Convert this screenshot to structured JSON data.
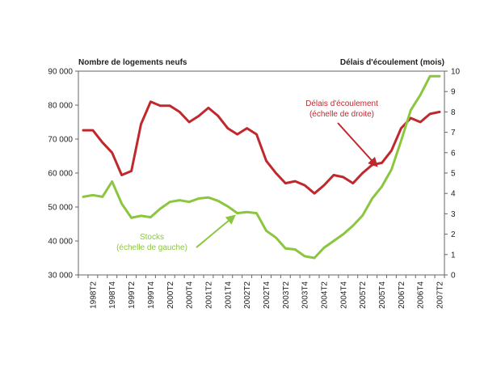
{
  "chart_data": {
    "type": "line",
    "left_axis_title": "Nombre de logements neufs",
    "right_axis_title": "Délais d'écoulement (mois)",
    "left_ylim": [
      30000,
      90000
    ],
    "left_ticks": [
      30000,
      40000,
      50000,
      60000,
      70000,
      80000,
      90000
    ],
    "left_tick_labels": [
      "30 000",
      "40 000",
      "50 000",
      "60 000",
      "70 000",
      "80 000",
      "90 000"
    ],
    "right_ylim": [
      0,
      10
    ],
    "right_ticks": [
      0,
      1,
      2,
      3,
      4,
      5,
      6,
      7,
      8,
      9,
      10
    ],
    "right_tick_labels": [
      "0",
      "1",
      "2",
      "3",
      "4",
      "5",
      "6",
      "7",
      "8",
      "9",
      "10"
    ],
    "categories": [
      "1998T1",
      "1998T2",
      "1998T3",
      "1998T4",
      "1999T1",
      "1999T2",
      "1999T3",
      "1999T4",
      "2000T1",
      "2000T2",
      "2000T3",
      "2000T4",
      "2001T1",
      "2001T2",
      "2001T3",
      "2001T4",
      "2002T1",
      "2002T2",
      "2002T3",
      "2002T4",
      "2003T1",
      "2003T2",
      "2003T3",
      "2003T4",
      "2004T1",
      "2004T2",
      "2004T3",
      "2004T4",
      "2005T1",
      "2005T2",
      "2005T3",
      "2005T4",
      "2006T1",
      "2006T2",
      "2006T3",
      "2006T4",
      "2007T1",
      "2007T2"
    ],
    "x_tick_labels": [
      "1998T2",
      "1998T4",
      "1999T2",
      "1999T4",
      "2000T2",
      "2000T4",
      "2001T2",
      "2001T4",
      "2002T2",
      "2002T4",
      "2003T2",
      "2003T4",
      "2004T2",
      "2004T4",
      "2005T2",
      "2005T4",
      "2006T2",
      "2006T4",
      "2007T2"
    ],
    "grid": false,
    "series": [
      {
        "name": "Délais d'écoulement (échelle de droite)",
        "axis": "right",
        "color": "#c0282d",
        "values": [
          7.1,
          7.1,
          6.5,
          6.0,
          4.9,
          5.1,
          7.4,
          8.5,
          8.3,
          8.3,
          8.0,
          7.5,
          7.8,
          8.2,
          7.8,
          7.2,
          6.9,
          7.2,
          6.9,
          5.6,
          5.0,
          4.5,
          4.6,
          4.4,
          4.0,
          4.4,
          4.9,
          4.8,
          4.5,
          5.0,
          5.4,
          5.5,
          6.1,
          7.2,
          7.7,
          7.5,
          7.9,
          8.0
        ]
      },
      {
        "name": "Stocks (échelle de gauche)",
        "axis": "left",
        "color": "#8cc63f",
        "values": [
          53000,
          53500,
          53000,
          57500,
          51000,
          46800,
          47400,
          47000,
          49500,
          51500,
          52000,
          51500,
          52500,
          52800,
          51800,
          50200,
          48200,
          48500,
          48200,
          43000,
          41000,
          37800,
          37500,
          35500,
          35000,
          38000,
          40000,
          42000,
          44500,
          47500,
          52500,
          56000,
          61000,
          69500,
          78500,
          83000,
          88500,
          88500
        ]
      }
    ],
    "annotations": [
      {
        "lines": [
          "Délais d'écoulement",
          "(échelle de droite)"
        ],
        "color": "#c0282d"
      },
      {
        "lines": [
          "Stocks",
          "(échelle de gauche)"
        ],
        "color": "#8cc63f"
      }
    ]
  }
}
